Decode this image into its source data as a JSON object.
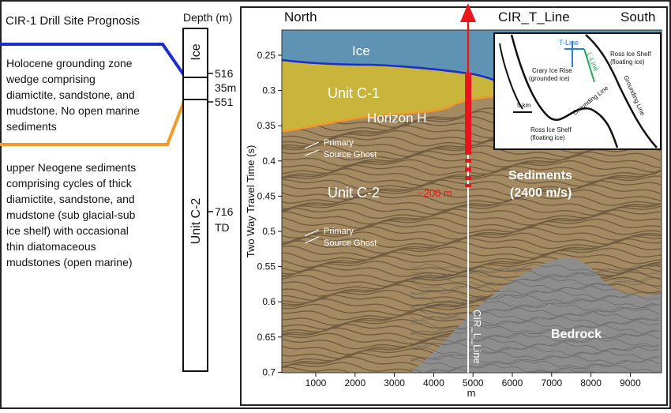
{
  "left_panel": {
    "title": "CIR-1 Drill Site Prognosis",
    "upper_description": [
      "Holocene grounding zone",
      "wedge comprising",
      "diamictite, sandstone, and",
      "mudstone. No open marine",
      "sediments"
    ],
    "lower_description": [
      "upper Neogene sediments",
      "comprising cycles of thick",
      "diamictite, sandstone, and",
      "mudstone (sub glacial-sub",
      "ice shelf) with occasional",
      "thin diatomaceous",
      "mudstones (open marine)"
    ],
    "colors": {
      "upper_line": "#1a2ecc",
      "lower_line": "#f39a2a"
    }
  },
  "column": {
    "header": "Depth (m)",
    "ice_label": "Ice",
    "unit_label": "Unit C-2",
    "depth_516": "516",
    "thickness_35": "35m",
    "depth_551": "551",
    "depth_716": "716",
    "td_label": "TD"
  },
  "section": {
    "north": "North",
    "south": "South",
    "line_name": "CIR_T_Line",
    "ice": "Ice",
    "unit_c1": "Unit C-1",
    "horizon_h": "Horizon H",
    "unit_c2": "Unit C-2",
    "ghost1": [
      "Primary",
      "Source Ghost"
    ],
    "ghost2": [
      "Primary",
      "Source Ghost"
    ],
    "depth_200": "~200 m",
    "sediments": [
      "Sediments",
      "(2400 m/s)"
    ],
    "bedrock": "Bedrock",
    "cir_l_line": "CIR_L_Line",
    "y_axis_label": "Two Way Travel Time (s)",
    "x_axis_label": "m",
    "y_ticks": [
      "0.25",
      "0.3",
      "0.35",
      "0.4",
      "0.45",
      "0.5",
      "0.55",
      "0.6",
      "0.65",
      "0.7"
    ],
    "x_ticks": [
      "1000",
      "2000",
      "3000",
      "4000",
      "5000",
      "6000",
      "7000",
      "8000",
      "9000"
    ],
    "colors": {
      "ice": "#5f93b3",
      "unit_c1": "#c9b43c",
      "sediments": "#a48a62",
      "bedrock": "#8d8d8d",
      "arrow": "#e8161c"
    }
  },
  "inset": {
    "t_line": "T-Line",
    "l_line": "L-Line",
    "ross_shelf_top": [
      "Ross Ice Shelf",
      "(floating ice)"
    ],
    "crary": [
      "Crary Ice Rise",
      "(grounded ice)"
    ],
    "grounding_right": "Grounding Line",
    "grounding_bottom": "Grounding Line",
    "scale": "5 km",
    "ross_shelf_bottom": [
      "Ross Ice Shelf",
      "(floating ice)"
    ],
    "colors": {
      "t_line": "#2c7fd0",
      "l_line": "#26a35a"
    }
  }
}
